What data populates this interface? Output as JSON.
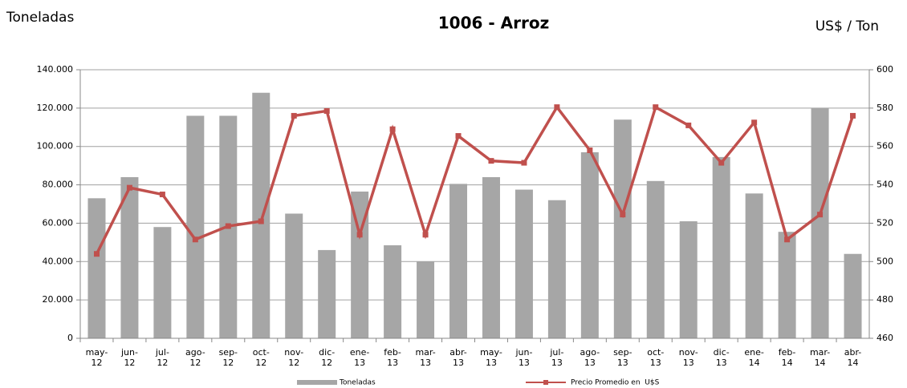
{
  "chart_data": {
    "type": "bar-line",
    "title": "1006 - Arroz",
    "y_label": "Toneladas",
    "y2_label": "US$ / Ton",
    "categories": [
      "may-12",
      "jun-12",
      "jul-12",
      "ago-12",
      "sep-12",
      "oct-12",
      "nov-12",
      "dic-12",
      "ene-13",
      "feb-13",
      "mar-13",
      "abr-13",
      "may-13",
      "jun-13",
      "jul-13",
      "ago-13",
      "sep-13",
      "oct-13",
      "nov-13",
      "dic-13",
      "ene-14",
      "feb-14",
      "mar-14",
      "abr-14"
    ],
    "series": [
      {
        "name": "Toneladas",
        "type": "bar",
        "color": "#a6a6a6",
        "values": [
          73000,
          84000,
          58000,
          116000,
          116000,
          128000,
          65000,
          46000,
          76500,
          48500,
          40000,
          80500,
          84000,
          77500,
          72000,
          97000,
          114000,
          82000,
          61000,
          94500,
          75500,
          55500,
          120000,
          44000
        ]
      },
      {
        "name": "Precio Promedio en  U$S",
        "type": "line",
        "axis": "y2",
        "color": "#c0504d",
        "values": [
          504,
          538.5,
          535,
          511.5,
          518.5,
          521,
          576,
          578.5,
          514,
          569,
          514,
          565.5,
          552.5,
          551.5,
          580.5,
          558,
          524.5,
          580.5,
          571,
          551.5,
          572.5,
          511.5,
          524.5,
          576
        ]
      }
    ],
    "ylim": [
      0,
      140000
    ],
    "yticks": [
      0,
      {
        "value": 20000,
        "label": "20.000"
      },
      {
        "value": 40000,
        "label": "40.000"
      },
      {
        "value": 60000,
        "label": "60.000"
      },
      {
        "value": 80000,
        "label": "80.000"
      },
      {
        "value": 100000,
        "label": "100.000"
      },
      {
        "value": 120000,
        "label": "120.000"
      },
      {
        "value": 140000,
        "label": "140.000"
      }
    ],
    "y2lim": [
      460,
      600
    ],
    "y2ticks": [
      460,
      480,
      500,
      520,
      540,
      560,
      580,
      600
    ],
    "grid": true,
    "legend": "bottom"
  }
}
